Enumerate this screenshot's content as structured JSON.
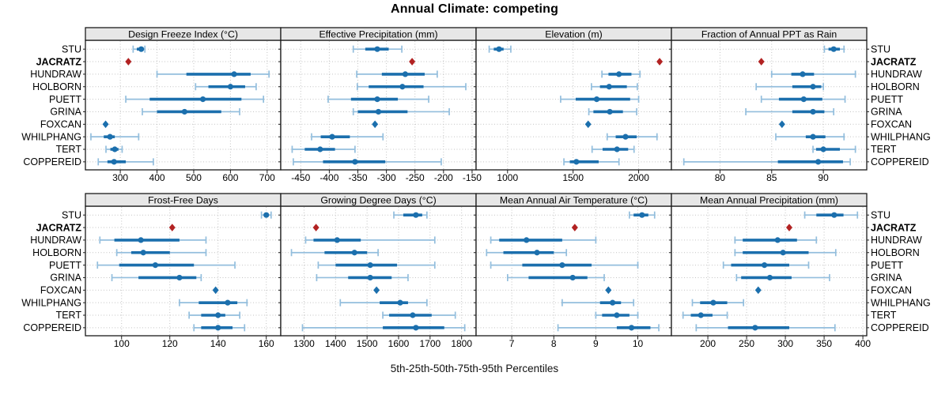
{
  "title": "Annual Climate: competing",
  "caption": "5th-25th-50th-75th-95th Percentiles",
  "sites": [
    "STU",
    "JACRATZ",
    "HUNDRAW",
    "HOLBORN",
    "PUETT",
    "GRINA",
    "FOXCAN",
    "WHILPHANG",
    "TERT",
    "COPPEREID"
  ],
  "highlight_site": "JACRATZ",
  "single_value_marker": "diamond",
  "value_format": "arrays are [p5,p25,p50,p75,p95]; single numbers are lone values drawn as diamonds",
  "colors": {
    "median_dot": "#1b6fad",
    "iqr_bar": "#1b6fad",
    "whisker": "#93bedd",
    "highlight_diamond": "#b22222",
    "blue_diamond": "#1b6fad",
    "strip_bg": "#e7e7e7",
    "grid": "#c3c3c3",
    "border": "#1a1a1a"
  },
  "chart_data": [
    {
      "type": "percentile-dotplot",
      "title": "Design Freeze Index (°C)",
      "xlim": [
        205,
        737
      ],
      "ticks": [
        300,
        400,
        500,
        600,
        700
      ],
      "values": {
        "STU": [
          335,
          345,
          357,
          364,
          367
        ],
        "JACRATZ": 322,
        "HUNDRAW": [
          400,
          480,
          610,
          655,
          705
        ],
        "HOLBORN": [
          505,
          540,
          600,
          640,
          670
        ],
        "PUETT": [
          315,
          380,
          525,
          630,
          690
        ],
        "GRINA": [
          360,
          400,
          475,
          575,
          625
        ],
        "FOXCAN": 260,
        "WHILPHANG": [
          220,
          255,
          272,
          285,
          350
        ],
        "TERT": [
          261,
          273,
          285,
          295,
          305
        ],
        "COPPEREID": [
          240,
          265,
          283,
          315,
          390
        ]
      }
    },
    {
      "type": "percentile-dotplot",
      "title": "Effective Precipitation (mm)",
      "xlim": [
        -485,
        -143
      ],
      "ticks": [
        -450,
        -400,
        -350,
        -300,
        -250,
        -200,
        -150
      ],
      "values": {
        "STU": [
          -358,
          -337,
          -316,
          -296,
          -273
        ],
        "JACRATZ": -255,
        "HUNDRAW": [
          -352,
          -308,
          -267,
          -233,
          -211
        ],
        "HOLBORN": [
          -351,
          -331,
          -272,
          -235,
          -161
        ],
        "PUETT": [
          -402,
          -362,
          -316,
          -280,
          -226
        ],
        "GRINA": [
          -358,
          -350,
          -314,
          -263,
          -190
        ],
        "FOXCAN": -320,
        "WHILPHANG": [
          -431,
          -415,
          -395,
          -364,
          -306
        ],
        "TERT": [
          -465,
          -443,
          -416,
          -390,
          -355
        ],
        "COPPEREID": [
          -463,
          -411,
          -355,
          -302,
          -204
        ]
      }
    },
    {
      "type": "percentile-dotplot",
      "title": "Elevation (m)",
      "xlim": [
        760,
        2250
      ],
      "ticks": [
        1000,
        1500,
        2000
      ],
      "values": {
        "STU": [
          860,
          895,
          935,
          970,
          1025
        ],
        "JACRATZ": 2160,
        "HUNDRAW": [
          1720,
          1770,
          1850,
          1945,
          2010
        ],
        "HOLBORN": [
          1640,
          1705,
          1775,
          1910,
          1990
        ],
        "PUETT": [
          1405,
          1520,
          1680,
          1935,
          2000
        ],
        "GRINA": [
          1620,
          1655,
          1780,
          1880,
          1985
        ],
        "FOXCAN": 1615,
        "WHILPHANG": [
          1760,
          1825,
          1900,
          1985,
          2140
        ],
        "TERT": [
          1645,
          1725,
          1835,
          1920,
          1965
        ],
        "COPPEREID": [
          1430,
          1475,
          1525,
          1695,
          1850
        ]
      }
    },
    {
      "type": "percentile-dotplot",
      "title": "Fraction of Annual PPT as Rain",
      "xlim": [
        75.3,
        94.2
      ],
      "ticks": [
        80,
        85,
        90
      ],
      "values": {
        "STU": [
          90.1,
          90.5,
          91.0,
          91.6,
          92.0
        ],
        "JACRATZ": 84.0,
        "HUNDRAW": [
          85.0,
          86.9,
          88.0,
          89.1,
          93.1
        ],
        "HOLBORN": [
          83.5,
          87.0,
          89.0,
          89.8,
          90.0
        ],
        "PUETT": [
          84.0,
          85.7,
          88.1,
          89.9,
          92.1
        ],
        "GRINA": [
          82.5,
          87.0,
          89.0,
          90.1,
          91.0
        ],
        "FOXCAN": 86.0,
        "WHILPHANG": [
          85.4,
          88.3,
          89.0,
          90.2,
          92.0
        ],
        "TERT": [
          89.0,
          89.3,
          90.0,
          91.6,
          93.1
        ],
        "COPPEREID": [
          76.5,
          85.6,
          89.5,
          91.9,
          92.6
        ]
      }
    },
    {
      "type": "percentile-dotplot",
      "title": "Frost-Free Days",
      "xlim": [
        85,
        166
      ],
      "ticks": [
        100,
        120,
        140,
        160
      ],
      "values": {
        "STU": [
          158,
          159,
          160,
          161,
          162
        ],
        "JACRATZ": 121,
        "HUNDRAW": [
          91,
          97,
          108,
          124,
          135
        ],
        "HOLBORN": [
          98,
          104,
          109,
          120,
          135
        ],
        "PUETT": [
          90,
          99,
          114,
          130,
          147
        ],
        "GRINA": [
          96,
          107,
          124,
          131,
          133
        ],
        "FOXCAN": 139,
        "WHILPHANG": [
          124,
          132,
          144,
          148,
          152
        ],
        "TERT": [
          128,
          133,
          140,
          143,
          149
        ],
        "COPPEREID": [
          130,
          133,
          140,
          146,
          151
        ]
      }
    },
    {
      "type": "percentile-dotplot",
      "title": "Growing Degree Days (°C)",
      "xlim": [
        1226,
        1846
      ],
      "ticks": [
        1300,
        1400,
        1500,
        1600,
        1700,
        1800
      ],
      "values": {
        "STU": [
          1585,
          1615,
          1655,
          1675,
          1690
        ],
        "JACRATZ": 1338,
        "HUNDRAW": [
          1305,
          1330,
          1405,
          1480,
          1715
        ],
        "HOLBORN": [
          1260,
          1365,
          1460,
          1500,
          1535
        ],
        "PUETT": [
          1345,
          1400,
          1510,
          1595,
          1715
        ],
        "GRINA": [
          1340,
          1440,
          1510,
          1578,
          1630
        ],
        "FOXCAN": 1530,
        "WHILPHANG": [
          1415,
          1540,
          1605,
          1630,
          1690
        ],
        "TERT": [
          1550,
          1570,
          1645,
          1705,
          1780
        ],
        "COPPEREID": [
          1295,
          1550,
          1655,
          1745,
          1810
        ]
      }
    },
    {
      "type": "percentile-dotplot",
      "title": "Mean Annual Air Temperature (°C)",
      "xlim": [
        6.15,
        10.8
      ],
      "ticks": [
        7,
        8,
        9,
        10
      ],
      "values": {
        "STU": [
          9.8,
          9.9,
          10.1,
          10.25,
          10.4
        ],
        "JACRATZ": 8.5,
        "HUNDRAW": [
          6.5,
          6.7,
          7.35,
          8.2,
          9.0
        ],
        "HOLBORN": [
          6.4,
          6.8,
          7.6,
          8.0,
          8.3
        ],
        "PUETT": [
          6.5,
          7.25,
          8.2,
          8.9,
          10.0
        ],
        "GRINA": [
          6.9,
          7.4,
          8.45,
          8.8,
          9.2
        ],
        "FOXCAN": 9.3,
        "WHILPHANG": [
          8.2,
          9.1,
          9.4,
          9.6,
          9.9
        ],
        "TERT": [
          9.0,
          9.15,
          9.5,
          9.8,
          10.0
        ],
        "COPPEREID": [
          8.1,
          9.5,
          9.85,
          10.3,
          10.5
        ]
      }
    },
    {
      "type": "percentile-dotplot",
      "title": "Mean Annual Precipitation (mm)",
      "xlim": [
        153,
        405
      ],
      "ticks": [
        200,
        250,
        300,
        350,
        400
      ],
      "values": {
        "STU": [
          325,
          340,
          363,
          375,
          393
        ],
        "JACRATZ": 305,
        "HUNDRAW": [
          235,
          245,
          290,
          315,
          340
        ],
        "HOLBORN": [
          235,
          245,
          297,
          330,
          365
        ],
        "PUETT": [
          220,
          230,
          273,
          305,
          330
        ],
        "GRINA": [
          237,
          243,
          280,
          308,
          357
        ],
        "FOXCAN": 265,
        "WHILPHANG": [
          180,
          190,
          207,
          225,
          246
        ],
        "TERT": [
          168,
          178,
          191,
          206,
          225
        ],
        "COPPEREID": [
          185,
          226,
          261,
          305,
          364
        ]
      }
    }
  ]
}
